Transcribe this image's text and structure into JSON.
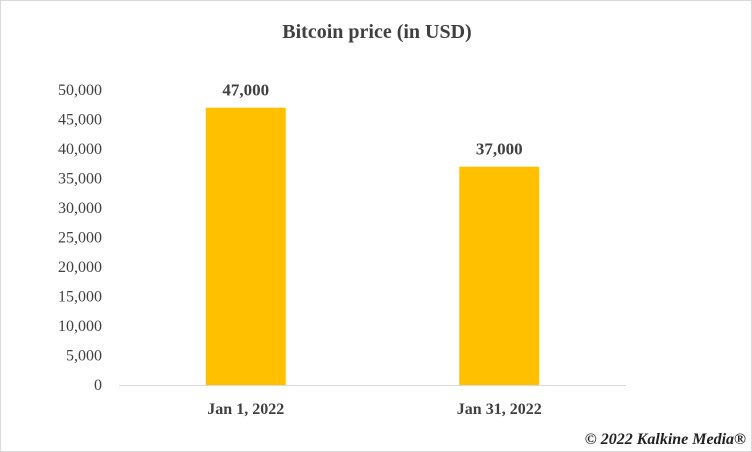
{
  "chart_data": {
    "type": "bar",
    "title": "Bitcoin price (in USD)",
    "categories": [
      "Jan 1, 2022",
      "Jan 31, 2022"
    ],
    "values": [
      47000,
      37000
    ],
    "data_labels": [
      "47,000",
      "37,000"
    ],
    "yticks": [
      "0",
      "5,000",
      "10,000",
      "15,000",
      "20,000",
      "25,000",
      "30,000",
      "35,000",
      "40,000",
      "45,000",
      "50,000"
    ],
    "ylim": [
      0,
      50000
    ],
    "xlabel": "",
    "ylabel": "",
    "grid": false,
    "legend": "none",
    "bar_color": "#FFC000"
  },
  "watermark": "© 2022 Kalkine Media®"
}
